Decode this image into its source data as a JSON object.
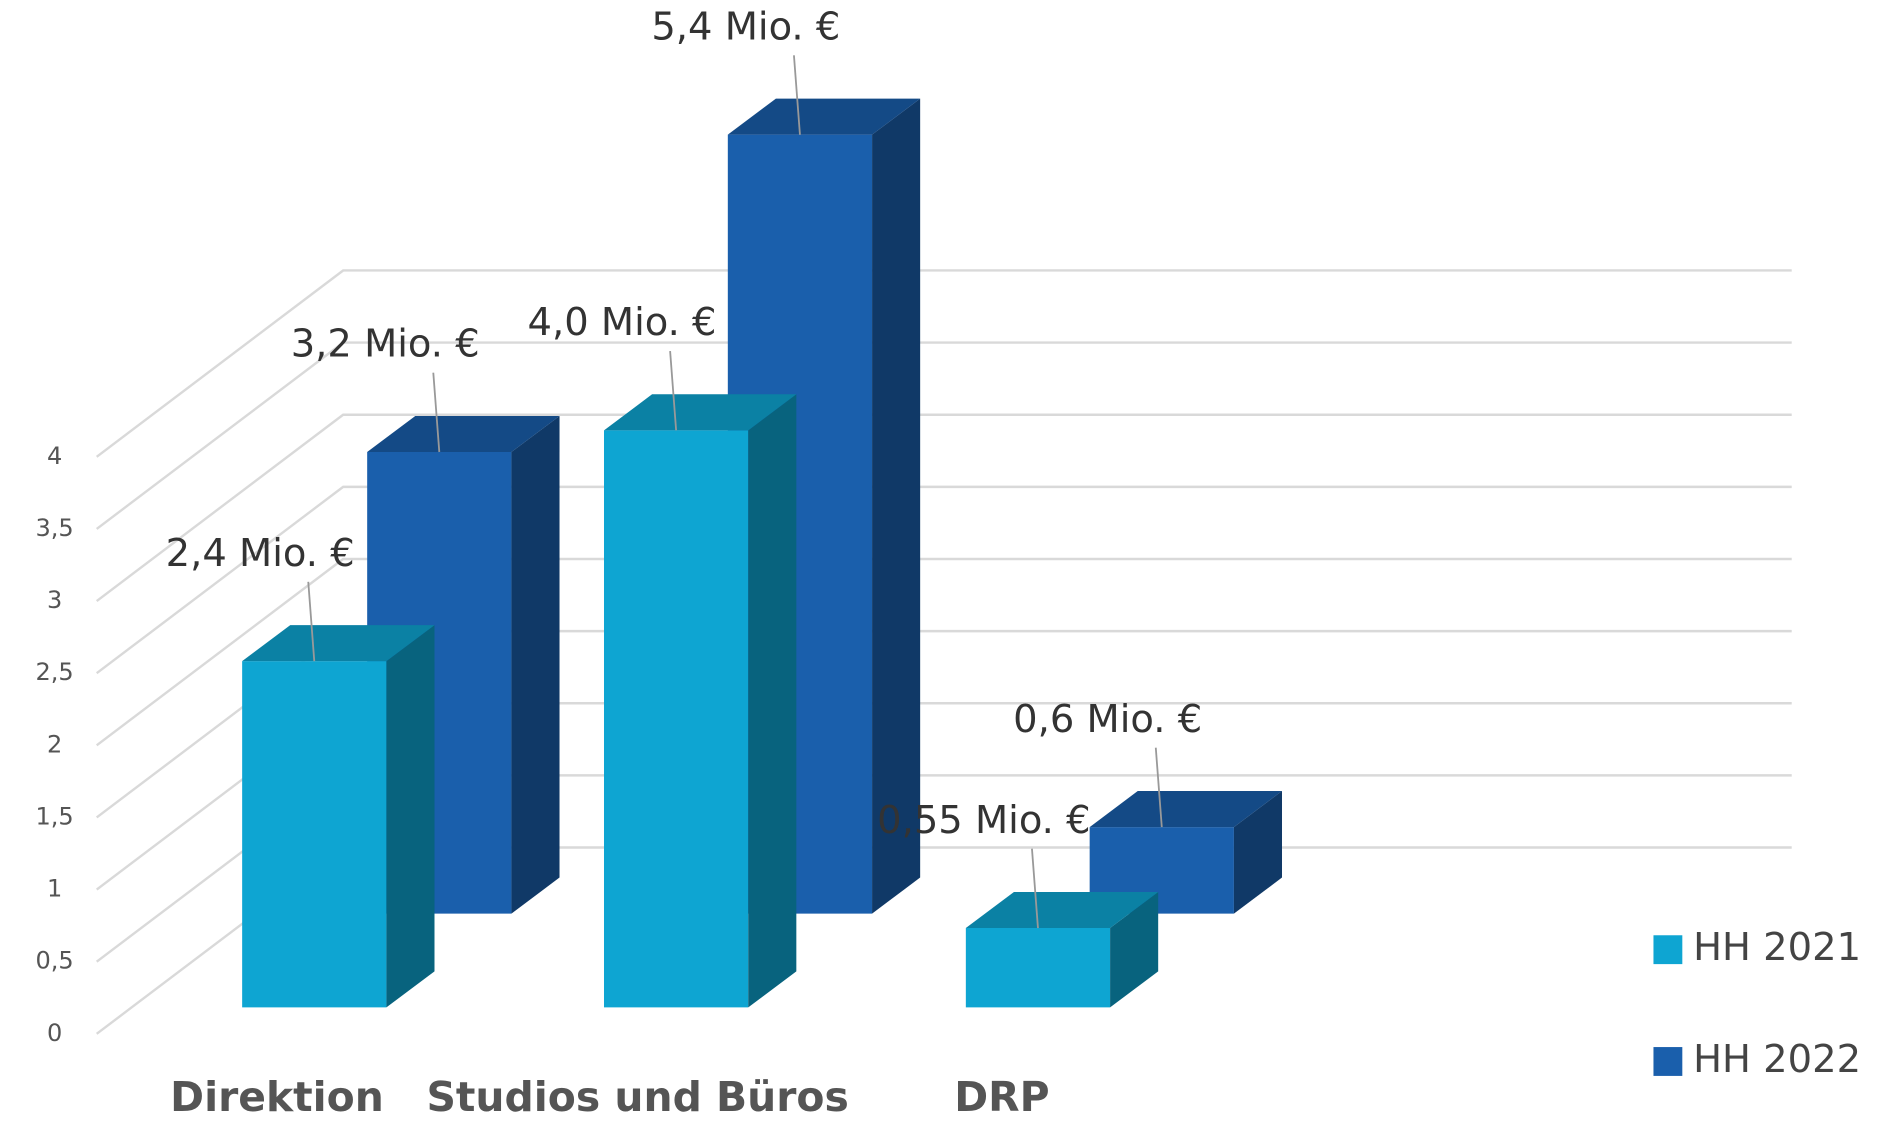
{
  "chart_data": {
    "type": "bar3d",
    "categories": [
      "Direktion",
      "Studios und Büros",
      "DRP"
    ],
    "series": [
      {
        "name": "HH 2021",
        "color": "#0ea5d2",
        "values": [
          2.4,
          4.0,
          0.55
        ],
        "value_labels": [
          "2,4 Mio. €",
          "4,0 Mio. €",
          "0,55 Mio. €"
        ]
      },
      {
        "name": "HH 2022",
        "color": "#1a5fac",
        "values": [
          3.2,
          5.4,
          0.6
        ],
        "value_labels": [
          "3,2 Mio. €",
          "5,4 Mio. €",
          "0,6 Mio. €"
        ]
      }
    ],
    "ylim": [
      0,
      4
    ],
    "yticks": [
      0,
      {
        "value": 0.5,
        "label": "0,5"
      },
      1,
      {
        "value": 1.5,
        "label": "1,5"
      },
      2,
      {
        "value": 2.5,
        "label": "2,5"
      },
      3,
      {
        "value": 3.5,
        "label": "3,5"
      },
      4
    ],
    "grid": true,
    "legend": "right"
  }
}
